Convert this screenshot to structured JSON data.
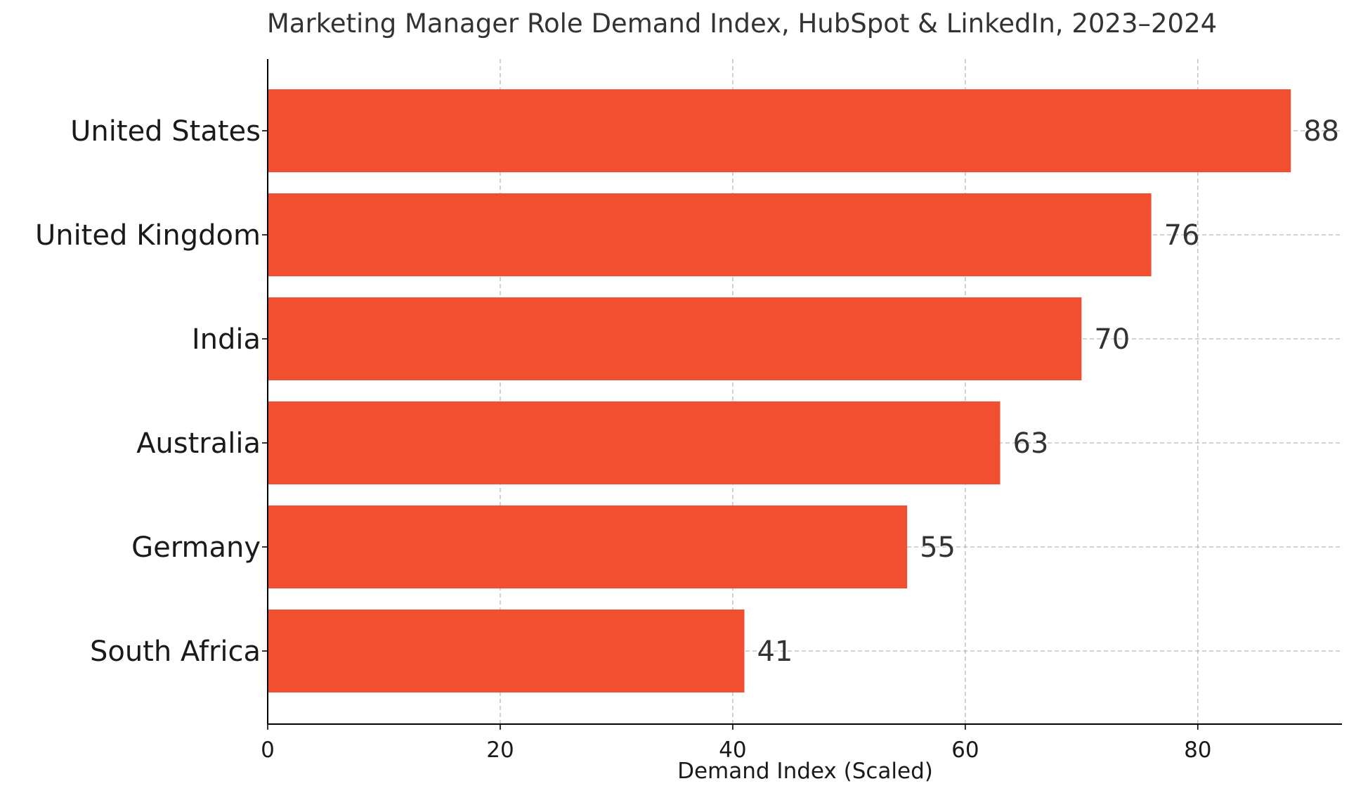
{
  "chart_data": {
    "type": "bar",
    "orientation": "horizontal",
    "title": "Marketing Manager Role Demand Index, HubSpot & LinkedIn, 2023–2024",
    "xlabel": "Demand Index (Scaled)",
    "ylabel": "",
    "categories": [
      "United States",
      "United Kingdom",
      "India",
      "Australia",
      "Germany",
      "South Africa"
    ],
    "values": [
      88,
      76,
      70,
      63,
      55,
      41
    ],
    "value_labels": [
      "88",
      "76",
      "70",
      "63",
      "55",
      "41"
    ],
    "xlim": [
      0,
      92.4
    ],
    "xticks": [
      0,
      20,
      40,
      60,
      80
    ],
    "xtick_labels": [
      "0",
      "20",
      "40",
      "60",
      "80"
    ],
    "grid": true,
    "bar_color": "#f24e30"
  }
}
